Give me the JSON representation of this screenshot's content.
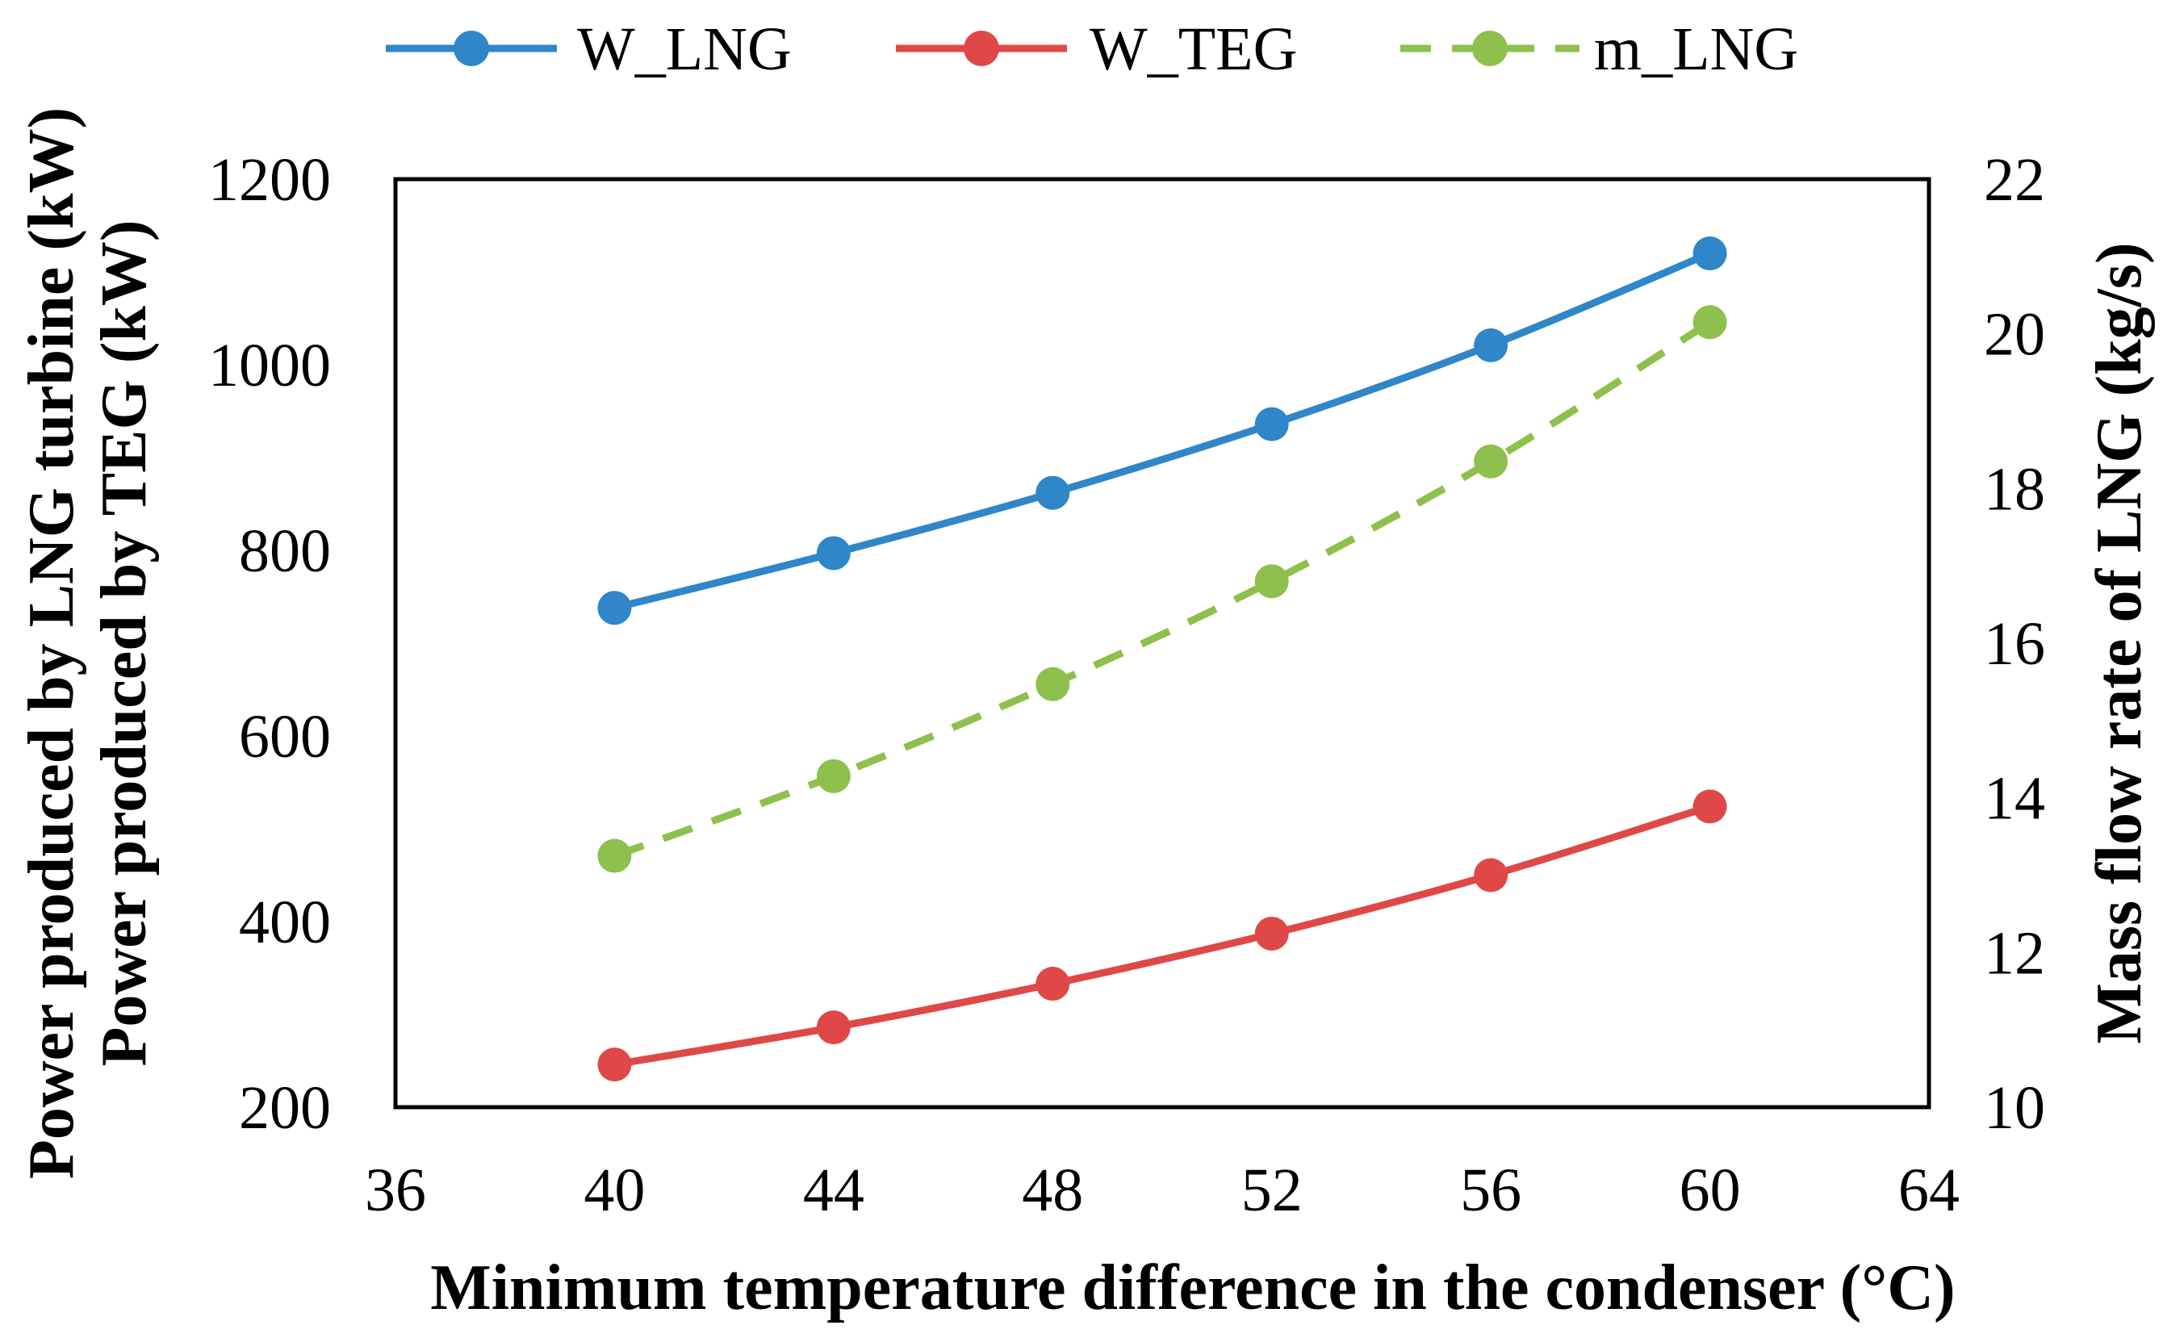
{
  "chart_data": {
    "type": "line",
    "title": "",
    "xlabel": "Minimum temperature difference in the condenser (°C)",
    "ylabel_left": [
      "Power produced by LNG turbine (kW)",
      "Power produced by TEG (kW)"
    ],
    "ylabel_right": "Mass flow rate of LNG (kg/s)",
    "x": [
      40,
      44,
      48,
      52,
      56,
      60
    ],
    "xlim": [
      36,
      64
    ],
    "x_ticks": [
      36,
      40,
      44,
      48,
      52,
      56,
      60,
      64
    ],
    "ylim_left": [
      200,
      1200
    ],
    "y_ticks_left": [
      200,
      400,
      600,
      800,
      1000,
      1200
    ],
    "ylim_right": [
      10,
      22
    ],
    "y_ticks_right": [
      10,
      12,
      14,
      16,
      18,
      20,
      22
    ],
    "grid": false,
    "legend_position": "top",
    "series": [
      {
        "name": "W_LNG",
        "axis": "left",
        "color": "#2f86c8",
        "style": "solid",
        "values": [
          738,
          797,
          862,
          936,
          1021,
          1120
        ]
      },
      {
        "name": "W_TEG",
        "axis": "left",
        "color": "#e04848",
        "style": "solid",
        "values": [
          246,
          286,
          333,
          387,
          450,
          524
        ]
      },
      {
        "name": "m_LNG",
        "axis": "right",
        "color": "#8dc04c",
        "style": "dashed",
        "values": [
          13.25,
          14.28,
          15.47,
          16.8,
          18.35,
          20.15
        ]
      }
    ]
  }
}
